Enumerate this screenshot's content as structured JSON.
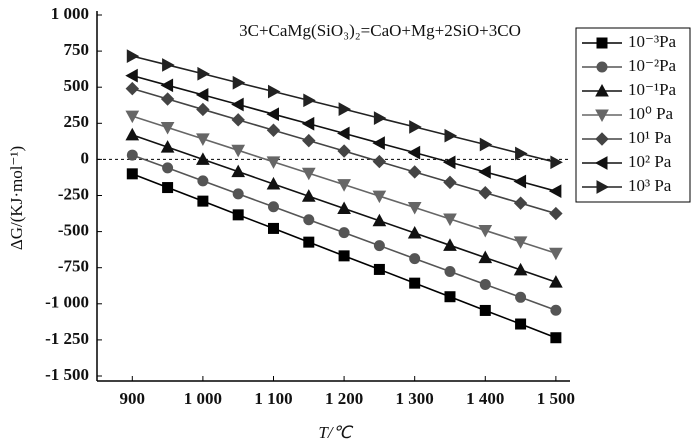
{
  "chart_data": {
    "type": "line",
    "title": "3C+CaMg(SiO₃)₂=CaO+Mg+2SiO+3CO",
    "x_label": "T/℃",
    "y_label": "ΔG/(KJ·mol⁻¹)",
    "x": [
      900,
      950,
      1000,
      1050,
      1100,
      1150,
      1200,
      1250,
      1300,
      1350,
      1400,
      1450,
      1500
    ],
    "xlim": [
      850,
      1520
    ],
    "xticks": [
      900,
      {
        "value": 1000,
        "label": "1 000"
      },
      {
        "value": 1100,
        "label": "1 100"
      },
      {
        "value": 1200,
        "label": "1 200"
      },
      {
        "value": 1300,
        "label": "1 300"
      },
      {
        "value": 1400,
        "label": "1 400"
      },
      {
        "value": 1500,
        "label": "1 500"
      }
    ],
    "ylim": [
      -1500,
      1000
    ],
    "yticks": [
      {
        "value": -1500,
        "label": "-1 500"
      },
      {
        "value": -1250,
        "label": "-1 250"
      },
      {
        "value": -1000,
        "label": "-1 000"
      },
      -750,
      -500,
      -250,
      0,
      250,
      500,
      750,
      {
        "value": 1000,
        "label": "1 000"
      }
    ],
    "zero_line": true,
    "series": [
      {
        "name": "10⁻³Pa",
        "color": "#000000",
        "marker": "square",
        "values": [
          -100,
          -195,
          -289,
          -384,
          -478,
          -573,
          -668,
          -762,
          -857,
          -951,
          -1046,
          -1140,
          -1235
        ]
      },
      {
        "name": "10⁻²Pa",
        "color": "#555555",
        "marker": "circle",
        "values": [
          30,
          -59,
          -149,
          -239,
          -328,
          -418,
          -507,
          -597,
          -687,
          -776,
          -866,
          -955,
          -1045
        ]
      },
      {
        "name": "10⁻¹Pa",
        "color": "#111111",
        "marker": "triangle-up",
        "values": [
          170,
          85,
          0,
          -85,
          -170,
          -255,
          -340,
          -425,
          -510,
          -595,
          -680,
          -765,
          -850
        ]
      },
      {
        "name": "10⁰ Pa",
        "color": "#666666",
        "marker": "triangle-down",
        "values": [
          300,
          221,
          142,
          63,
          -17,
          -96,
          -175,
          -254,
          -333,
          -413,
          -492,
          -571,
          -650
        ]
      },
      {
        "name": "10¹ Pa",
        "color": "#444444",
        "marker": "diamond",
        "values": [
          490,
          418,
          346,
          274,
          202,
          130,
          58,
          -15,
          -87,
          -159,
          -231,
          -303,
          -375
        ]
      },
      {
        "name": "10² Pa",
        "color": "#111111",
        "marker": "triangle-left",
        "values": [
          580,
          513,
          447,
          380,
          313,
          247,
          180,
          113,
          47,
          -20,
          -87,
          -153,
          -220
        ]
      },
      {
        "name": "10³ Pa",
        "color": "#222222",
        "marker": "triangle-right",
        "values": [
          715,
          654,
          593,
          531,
          470,
          409,
          348,
          286,
          225,
          164,
          103,
          41,
          -20
        ]
      }
    ]
  }
}
